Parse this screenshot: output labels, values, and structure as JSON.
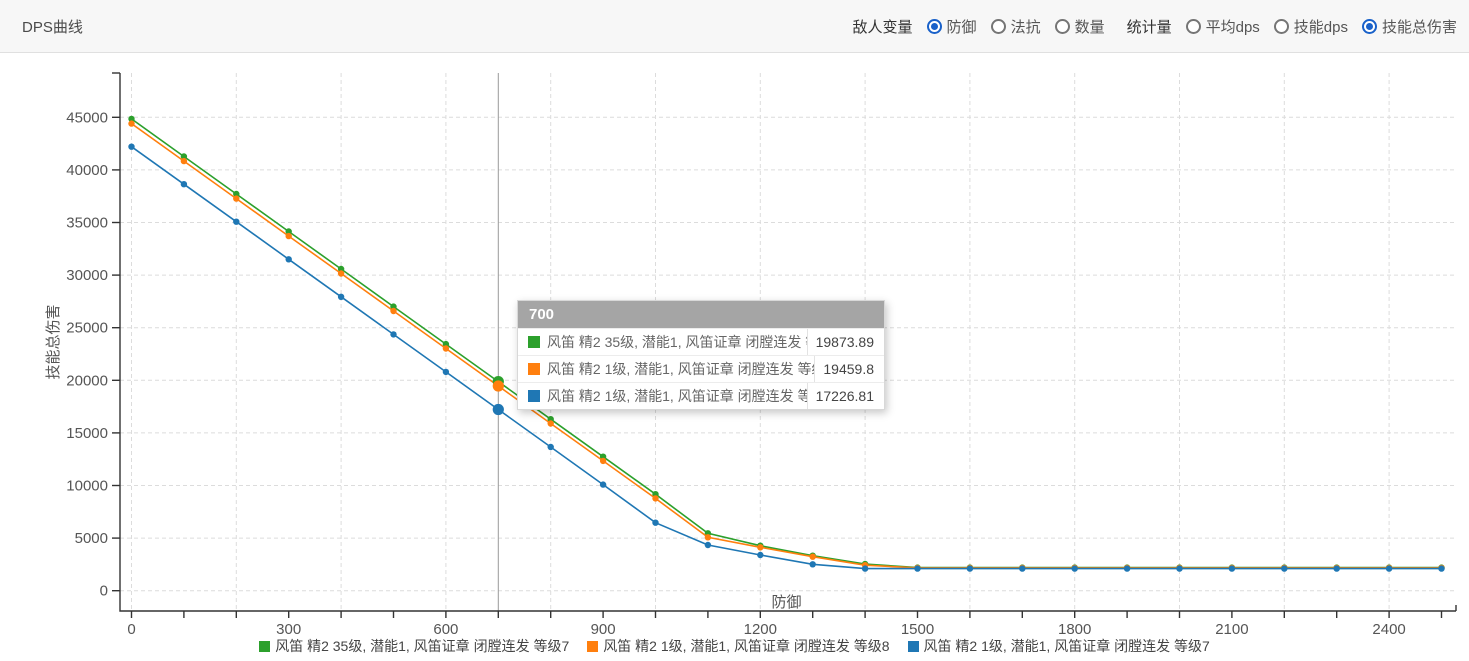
{
  "header": {
    "title": "DPS曲线",
    "enemy_var_label": "敌人变量",
    "enemy_var_options": [
      {
        "label": "防御",
        "selected": true
      },
      {
        "label": "法抗",
        "selected": false
      },
      {
        "label": "数量",
        "selected": false
      }
    ],
    "stat_label": "统计量",
    "stat_options": [
      {
        "label": "平均dps",
        "selected": false
      },
      {
        "label": "技能dps",
        "selected": false
      },
      {
        "label": "技能总伤害",
        "selected": true
      }
    ]
  },
  "chart_data": {
    "type": "line",
    "title": "",
    "xlabel": "防御",
    "ylabel": "技能总伤害",
    "xlim": [
      0,
      2500
    ],
    "ylim": [
      0,
      45000
    ],
    "x_tick_interval": 100,
    "x_label_interval": 300,
    "y_tick_interval": 5000,
    "grid_x_interval": 200,
    "grid": true,
    "legend_position": "bottom",
    "x": [
      0,
      100,
      200,
      300,
      400,
      500,
      600,
      700,
      800,
      900,
      1000,
      1100,
      1200,
      1300,
      1400,
      1500,
      1600,
      1700,
      1800,
      1900,
      2000,
      2100,
      2200,
      2300,
      2400,
      2500
    ],
    "series": [
      {
        "name": "风笛 精2 35级, 潜能1, 风笛证章 闭膛连发 等级7",
        "color": "#2ca02c",
        "values": [
          44845,
          41278,
          37710,
          34143,
          30576,
          27009,
          23441,
          19873.89,
          16307,
          12739,
          9172,
          5460,
          4280,
          3330,
          2540,
          2200,
          2200,
          2200,
          2200,
          2200,
          2200,
          2200,
          2200,
          2200,
          2200,
          2200
        ]
      },
      {
        "name": "风笛 精2 1级, 潜能1, 风笛证章 闭膛连发 等级8",
        "color": "#ff7f0e",
        "values": [
          44398,
          40835,
          37273,
          33710,
          30148,
          26585,
          23022,
          19459.8,
          15897,
          12335,
          8772,
          5080,
          4130,
          3230,
          2420,
          2170,
          2170,
          2170,
          2170,
          2170,
          2170,
          2170,
          2170,
          2170,
          2170,
          2170
        ]
      },
      {
        "name": "风笛 精2 1级, 潜能1, 风笛证章 闭膛连发 等级7",
        "color": "#1f77b4",
        "values": [
          42210,
          38641,
          35072,
          31503,
          27934,
          24365,
          20796,
          17226.81,
          13658,
          10089,
          6460,
          4340,
          3390,
          2510,
          2100,
          2100,
          2100,
          2100,
          2100,
          2100,
          2100,
          2100,
          2100,
          2100,
          2100,
          2100
        ]
      }
    ]
  },
  "tooltip": {
    "x_value": "700",
    "highlight_x": 700,
    "rows": [
      {
        "series": "风笛 精2 35级, 潜能1, 风笛证章 闭膛连发 等级7",
        "color": "#2ca02c",
        "value": "19873.89"
      },
      {
        "series": "风笛 精2 1级, 潜能1, 风笛证章 闭膛连发 等级8",
        "color": "#ff7f0e",
        "value": "19459.8"
      },
      {
        "series": "风笛 精2 1级, 潜能1, 风笛证章 闭膛连发 等级7",
        "color": "#1f77b4",
        "value": "17226.81"
      }
    ]
  },
  "colors": {
    "toolbar_bg": "#f7f7f7",
    "radio_selected": "#1961c9",
    "axis": "#333333",
    "grid": "#dcdcdc",
    "tick_text": "#555555",
    "crosshair": "#9a9a9a",
    "tooltip_header_bg": "#a5a5a5"
  }
}
